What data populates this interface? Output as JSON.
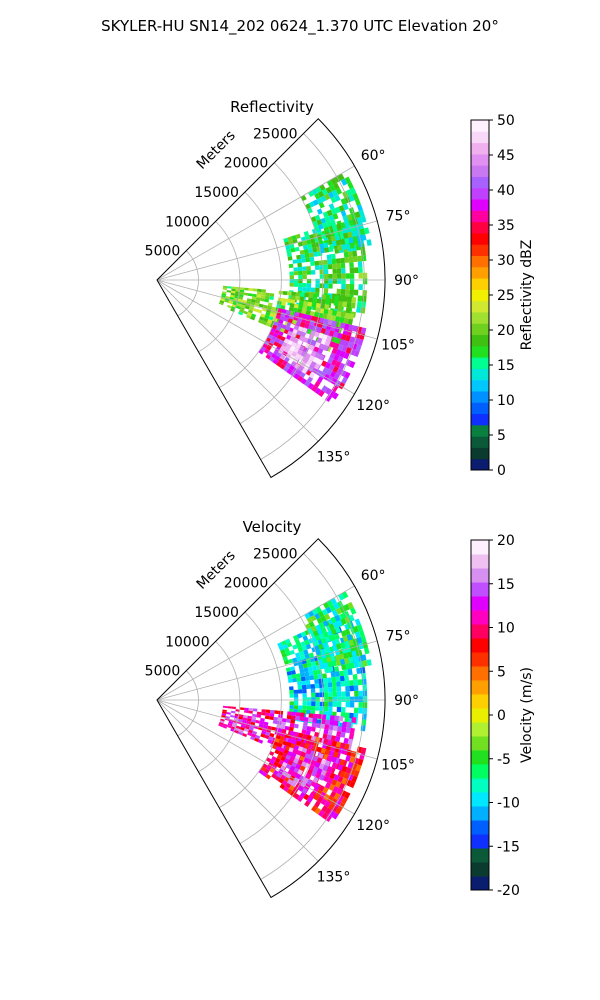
{
  "figure": {
    "title": "SKYLER-HU  SN14_202  0624_1.370 UTC Elevation 20°"
  },
  "chart_data": [
    {
      "type": "heatmap",
      "subtype": "polar-sector radar plot (PPI)",
      "title": "Reflectivity",
      "range_axis_label": "Meters",
      "range_ticks": [
        5000,
        10000,
        15000,
        20000,
        25000
      ],
      "range_max_m": 27500,
      "azimuth_range_deg": [
        45,
        150
      ],
      "azimuth_ticks": [
        "60°",
        "75°",
        "90°",
        "105°",
        "120°",
        "135°"
      ],
      "azimuth_tick_values": [
        60,
        75,
        90,
        105,
        120,
        135
      ],
      "grid": true,
      "colorbar": {
        "label": "Reflectivity dBZ",
        "min": 0,
        "max": 50,
        "ticks": [
          0,
          5,
          10,
          15,
          20,
          25,
          30,
          35,
          40,
          45,
          50
        ],
        "colors": [
          "#0b1d6e",
          "#0b3b2f",
          "#0a5a3a",
          "#0a8040",
          "#1030ff",
          "#0060ff",
          "#0090ff",
          "#00c8ff",
          "#00e8d8",
          "#00ff90",
          "#20e020",
          "#40c010",
          "#70d020",
          "#a0e030",
          "#d0e830",
          "#f0f000",
          "#ffd000",
          "#ffa000",
          "#ff7000",
          "#ff3000",
          "#ff0000",
          "#ff0040",
          "#ff00a0",
          "#e000ff",
          "#c040ff",
          "#a860ff",
          "#c878f0",
          "#e090f0",
          "#f0b0f0",
          "#f8d8f8",
          "#fff0ff"
        ]
      },
      "echo_summary": "Strongest echoes (35-50 dBZ) between about 105° and 125° at 15000-25000 m; weaker echoes (15-25 dBZ) from 60° to 110°",
      "data_regions": [
        {
          "az": [
            72,
            100
          ],
          "r": [
            16000,
            25000
          ],
          "value": 17
        },
        {
          "az": [
            95,
            112
          ],
          "r": [
            8000,
            24000
          ],
          "value": 20
        },
        {
          "az": [
            103,
            125
          ],
          "r": [
            15000,
            25500
          ],
          "value": 38
        },
        {
          "az": [
            108,
            122
          ],
          "r": [
            17000,
            22000
          ],
          "value": 46
        },
        {
          "az": [
            60,
            80
          ],
          "r": [
            20000,
            26000
          ],
          "value": 16
        }
      ]
    },
    {
      "type": "heatmap",
      "subtype": "polar-sector radar plot (PPI)",
      "title": "Velocity",
      "range_axis_label": "Meters",
      "range_ticks": [
        5000,
        10000,
        15000,
        20000,
        25000
      ],
      "range_max_m": 27500,
      "azimuth_range_deg": [
        45,
        150
      ],
      "azimuth_ticks": [
        "60°",
        "75°",
        "90°",
        "105°",
        "120°",
        "135°"
      ],
      "azimuth_tick_values": [
        60,
        75,
        90,
        105,
        120,
        135
      ],
      "grid": true,
      "colorbar": {
        "label": "Velocity (m/s)",
        "min": -20,
        "max": 20,
        "ticks": [
          -20,
          -15,
          -10,
          -5,
          0,
          5,
          10,
          15,
          20
        ],
        "colors": [
          "#0b1d6e",
          "#0b3b2f",
          "#0a5a3a",
          "#1030ff",
          "#0060ff",
          "#00b0ff",
          "#00e8ff",
          "#00ffc0",
          "#00ff60",
          "#20e020",
          "#70e020",
          "#b0f030",
          "#e8f000",
          "#ffd000",
          "#ffa000",
          "#ff7000",
          "#ff3000",
          "#ff0000",
          "#ff0060",
          "#ff00c0",
          "#e000ff",
          "#c050ff",
          "#d890f0",
          "#f0c0f0",
          "#fff0ff"
        ]
      },
      "echo_summary": "Inbound flow (-10 to -5 m/s) at 65°-100°; outbound flow (5 to 15 m/s) at 100°-130°",
      "data_regions": [
        {
          "az": [
            65,
            98
          ],
          "r": [
            16000,
            25000
          ],
          "value": -9
        },
        {
          "az": [
            95,
            112
          ],
          "r": [
            8000,
            24000
          ],
          "value": 12
        },
        {
          "az": [
            103,
            125
          ],
          "r": [
            15000,
            25500
          ],
          "value": 9
        },
        {
          "az": [
            108,
            122
          ],
          "r": [
            17000,
            22000
          ],
          "value": 14
        },
        {
          "az": [
            60,
            80
          ],
          "r": [
            20000,
            26000
          ],
          "value": -7
        }
      ]
    }
  ]
}
